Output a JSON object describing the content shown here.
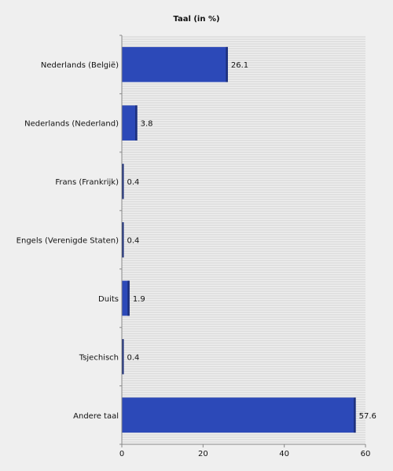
{
  "chart_data": {
    "type": "bar",
    "orientation": "horizontal",
    "title": "Taal (in %)",
    "categories": [
      "Nederlands (België)",
      "Nederlands (Nederland)",
      "Frans (Frankrijk)",
      "Engels (Verenigde Staten)",
      "Duits",
      "Tsjechisch",
      "Andere taal"
    ],
    "values": [
      26.1,
      3.8,
      0.4,
      0.4,
      1.9,
      0.4,
      57.6
    ],
    "value_labels": [
      "26.1",
      "3.8",
      "0.4",
      "0.4",
      "1.9",
      "0.4",
      "57.6"
    ],
    "xlim": [
      0,
      60
    ],
    "xticks": [
      0,
      20,
      40,
      60
    ],
    "xlabel": "",
    "ylabel": "",
    "grid": true,
    "colors": {
      "bar": "#2c49b8",
      "bar_edge": "#1d2f7a",
      "grid": "#d2d2d2",
      "axis": "#888888",
      "background": "#efefef"
    }
  }
}
